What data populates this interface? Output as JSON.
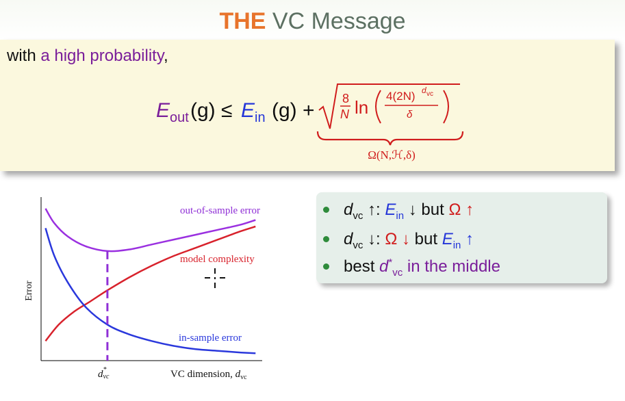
{
  "slide": {
    "title_highlight": "THE",
    "title_rest": "VC Message",
    "lead_prefix": "with",
    "lead_emph": "a high probability",
    "lead_suffix": ","
  },
  "formula": {
    "eout": "E",
    "eout_sub": "out",
    "eout_arg": "(g) ≤ ",
    "ein": "E",
    "ein_sub": "in",
    "ein_arg": "(g) + ",
    "frac_num": "8",
    "frac_den": "N",
    "ln": "ln",
    "inner_num": "4(2N)",
    "inner_num_sup": "d",
    "inner_num_sup_sub": "vc",
    "inner_den": "δ",
    "omega_label": "Ω(N,ℋ,δ)"
  },
  "bullets": [
    {
      "a": "d",
      "a_sub": "vc",
      "b": " ↑: ",
      "c": "E",
      "c_sub": "in",
      "d": " ↓ but ",
      "e": "Ω ↑"
    },
    {
      "a": "d",
      "a_sub": "vc",
      "b": " ↓: ",
      "c": "Ω ↓",
      "d": " but ",
      "e": "E",
      "e_sub": "in",
      "f": " ↑"
    },
    {
      "a": "best ",
      "b": "d",
      "b_sup": "*",
      "b_sub": "vc",
      "c": " in the middle"
    }
  ],
  "chart_data": {
    "type": "line",
    "xlabel": "VC dimension, d_vc",
    "ylabel": "Error",
    "ylim": [
      0,
      1
    ],
    "xlim": [
      0,
      1
    ],
    "optimum_label": "d*_vc",
    "optimum_x": 0.3,
    "series": [
      {
        "name": "out-of-sample error",
        "color": "#9a30e0",
        "x": [
          0.02,
          0.06,
          0.12,
          0.2,
          0.3,
          0.4,
          0.5,
          0.6,
          0.7,
          0.8,
          0.9,
          0.97
        ],
        "y": [
          0.93,
          0.84,
          0.76,
          0.7,
          0.67,
          0.68,
          0.71,
          0.74,
          0.77,
          0.8,
          0.83,
          0.86
        ]
      },
      {
        "name": "model complexity",
        "color": "#d8222c",
        "x": [
          0.02,
          0.08,
          0.15,
          0.22,
          0.3,
          0.4,
          0.5,
          0.6,
          0.7,
          0.8,
          0.9,
          0.97
        ],
        "y": [
          0.12,
          0.22,
          0.3,
          0.36,
          0.43,
          0.51,
          0.58,
          0.64,
          0.69,
          0.74,
          0.79,
          0.82
        ]
      },
      {
        "name": "in-sample error",
        "color": "#2a38dc",
        "x": [
          0.02,
          0.06,
          0.12,
          0.2,
          0.3,
          0.4,
          0.5,
          0.6,
          0.7,
          0.8,
          0.9,
          0.97
        ],
        "y": [
          0.81,
          0.64,
          0.48,
          0.33,
          0.22,
          0.16,
          0.12,
          0.09,
          0.07,
          0.06,
          0.05,
          0.045
        ]
      }
    ]
  }
}
